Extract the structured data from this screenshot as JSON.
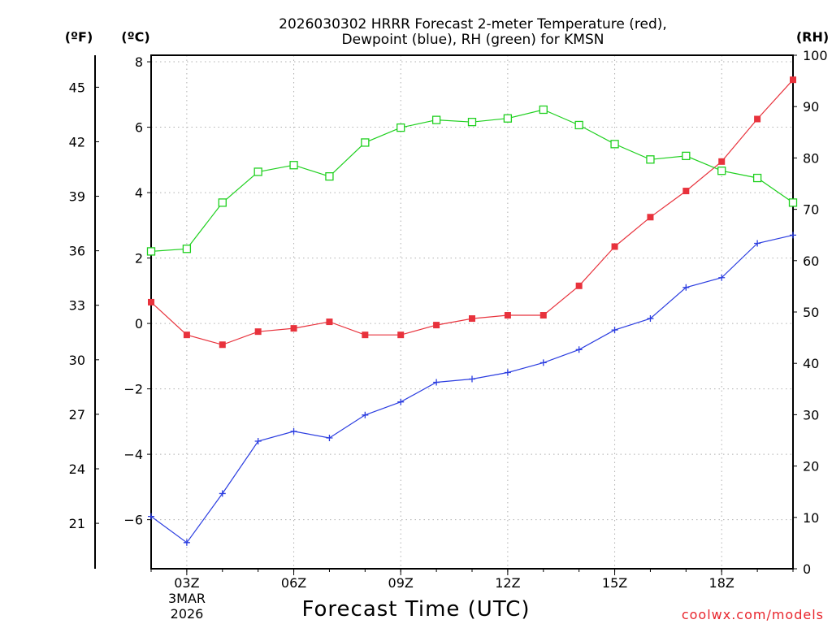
{
  "chart_data": {
    "type": "line",
    "title_lines": [
      "2026030302 HRRR Forecast 2-meter Temperature (red),",
      "Dewpoint (blue), RH (green) for KMSN"
    ],
    "units": {
      "fahrenheit": "(ºF)",
      "celsius": "(ºC)",
      "rh": "(RH)"
    },
    "xlabel": "Forecast Time (UTC)",
    "date_labels": [
      "3MAR",
      "2026"
    ],
    "watermark": "coolwx.com/models",
    "x_hours": [
      2,
      3,
      4,
      5,
      6,
      7,
      8,
      9,
      10,
      11,
      12,
      13,
      14,
      15,
      16,
      17,
      18,
      19,
      20
    ],
    "xlim": [
      2,
      20
    ],
    "x_ticks": [
      {
        "hour": 3,
        "label": "03Z"
      },
      {
        "hour": 6,
        "label": "06Z"
      },
      {
        "hour": 9,
        "label": "09Z"
      },
      {
        "hour": 12,
        "label": "12Z"
      },
      {
        "hour": 15,
        "label": "15Z"
      },
      {
        "hour": 18,
        "label": "18Z"
      }
    ],
    "celsius_axis": {
      "range": [
        -7.5,
        8.2
      ],
      "ticks": [
        -6,
        -4,
        -2,
        0,
        2,
        4,
        6,
        8
      ],
      "tick_labels": [
        "−6",
        "−4",
        "−2",
        "0",
        "2",
        "4",
        "6",
        "8"
      ]
    },
    "fahrenheit_axis": {
      "ticks": [
        21,
        24,
        27,
        30,
        33,
        36,
        39,
        42,
        45
      ],
      "tick_labels": [
        "21",
        "24",
        "27",
        "30",
        "33",
        "36",
        "39",
        "42",
        "45"
      ]
    },
    "rh_axis": {
      "range": [
        0,
        100
      ],
      "ticks": [
        0,
        10,
        20,
        30,
        40,
        50,
        60,
        70,
        80,
        90,
        100
      ],
      "tick_labels": [
        "0",
        "10",
        "20",
        "30",
        "40",
        "50",
        "60",
        "70",
        "80",
        "90",
        "100"
      ]
    },
    "series": [
      {
        "name": "2-meter Temperature",
        "color": "#e8323c",
        "marker": "filled-square",
        "axis": "celsius",
        "values": [
          0.65,
          -0.35,
          -0.65,
          -0.25,
          -0.15,
          0.05,
          -0.35,
          -0.35,
          -0.05,
          0.15,
          0.25,
          0.25,
          1.15,
          2.35,
          3.25,
          4.05,
          4.95,
          6.25,
          7.45
        ]
      },
      {
        "name": "Dewpoint",
        "color": "#2b3de0",
        "marker": "plus",
        "axis": "celsius",
        "values": [
          -5.9,
          -6.7,
          -5.2,
          -3.6,
          -3.3,
          -3.5,
          -2.8,
          -2.4,
          -1.8,
          -1.7,
          -1.5,
          -1.2,
          -0.8,
          -0.2,
          0.15,
          1.1,
          1.4,
          2.45,
          2.7
        ]
      },
      {
        "name": "RH",
        "color": "#1fd01f",
        "marker": "open-square",
        "axis": "rh",
        "values": [
          61.8,
          62.3,
          71.3,
          77.3,
          78.6,
          76.4,
          83.0,
          85.9,
          87.4,
          87.0,
          87.7,
          89.4,
          86.4,
          82.7,
          79.7,
          80.4,
          77.5,
          76.1,
          71.3
        ]
      }
    ],
    "grid": true
  }
}
